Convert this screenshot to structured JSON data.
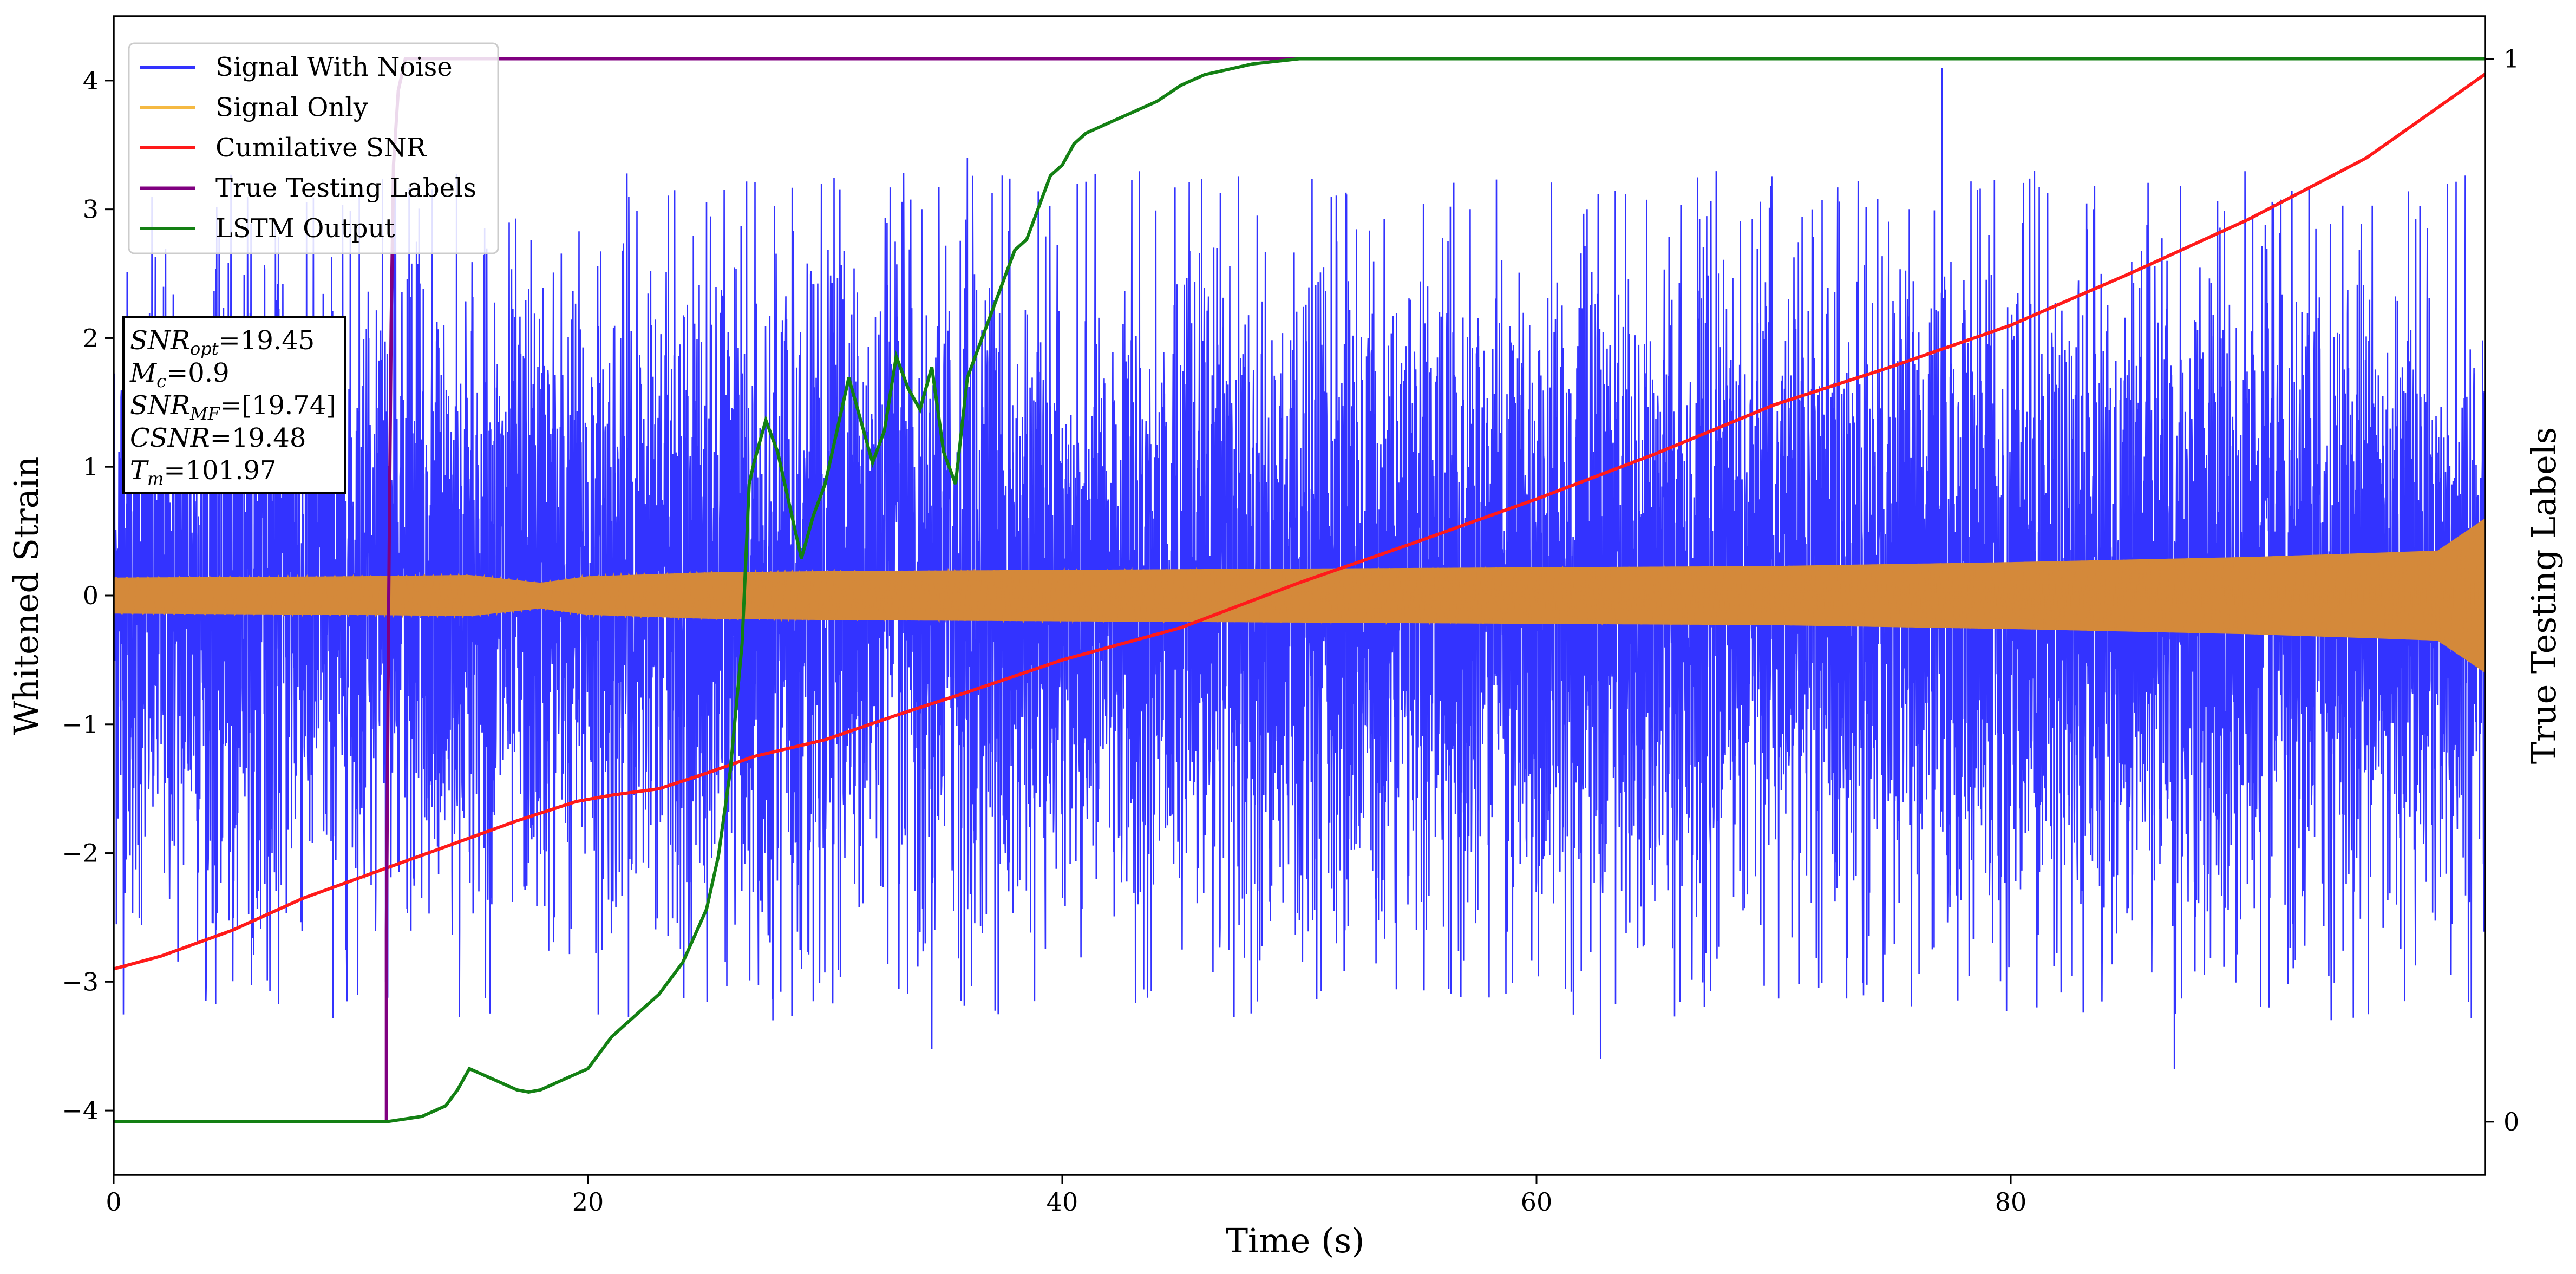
{
  "colors": {
    "signal_with_noise": "#3333ff",
    "signal_only": "#d4893a",
    "signal_only_legend": "#f5b942",
    "cumulative_snr": "#ff1a1a",
    "true_labels": "#800080",
    "lstm_output": "#138013"
  },
  "chart_data": {
    "type": "line",
    "xlabel": "Time (s)",
    "ylabel": "Whitened Strain",
    "ylabel_right": "True Testing Labels",
    "xlim": [
      0,
      100
    ],
    "ylim": [
      -4.5,
      4.5
    ],
    "ylim_right": [
      -0.05,
      1.04
    ],
    "xticks": [
      0,
      20,
      40,
      60,
      80
    ],
    "yticks": [
      -4,
      -3,
      -2,
      -1,
      0,
      1,
      2,
      3,
      4
    ],
    "yticks_right": [
      0,
      1
    ],
    "tick_labels": {
      "x": [
        "0",
        "20",
        "40",
        "60",
        "80"
      ],
      "y": [
        "−4",
        "−3",
        "−2",
        "−1",
        "0",
        "1",
        "2",
        "3",
        "4"
      ],
      "y_right": [
        "0",
        "1"
      ]
    },
    "legend_position": "upper-left",
    "grid": false,
    "legend": [
      {
        "label": "Signal With Noise",
        "color": "#3333ff"
      },
      {
        "label": "Signal Only",
        "color": "#f5b942"
      },
      {
        "label": "Cumilative SNR",
        "color": "#ff1a1a"
      },
      {
        "label": "True Testing Labels",
        "color": "#800080"
      },
      {
        "label": "LSTM Output",
        "color": "#138013"
      }
    ],
    "annotation": {
      "snr_opt": "=19.45",
      "mc": "=0.9",
      "snr_mf": "=[19.74]",
      "csnr": "=19.48",
      "tm": "=101.97"
    },
    "series": [
      {
        "name": "Cumilative SNR",
        "axis": "left",
        "x": [
          0,
          2,
          5,
          8,
          11,
          14,
          17,
          19.5,
          21,
          23,
          25,
          27,
          30,
          33,
          36,
          40,
          45,
          50,
          55,
          60,
          65,
          70,
          75,
          80,
          85,
          90,
          95,
          100
        ],
        "y": [
          -2.9,
          -2.8,
          -2.6,
          -2.35,
          -2.15,
          -1.95,
          -1.75,
          -1.6,
          -1.55,
          -1.5,
          -1.38,
          -1.25,
          -1.12,
          -0.93,
          -0.75,
          -0.5,
          -0.25,
          0.1,
          0.42,
          0.75,
          1.1,
          1.48,
          1.78,
          2.1,
          2.5,
          2.92,
          3.4,
          4.05
        ]
      },
      {
        "name": "True Testing Labels",
        "axis": "right",
        "x": [
          11.5,
          11.5,
          11.6,
          11.7,
          11.8,
          12.0,
          12.3,
          100
        ],
        "y": [
          0,
          0.18,
          0.5,
          0.75,
          0.9,
          0.97,
          1.0,
          1.0
        ]
      },
      {
        "name": "LSTM Output",
        "axis": "right",
        "x": [
          0,
          8,
          11.5,
          13,
          14,
          14.5,
          15,
          16,
          17,
          17.5,
          18,
          19,
          20,
          21,
          22,
          23,
          24,
          25,
          25.5,
          26,
          26.5,
          26.8,
          27,
          27.5,
          28,
          28.5,
          29,
          29.5,
          30,
          30.5,
          31,
          31.5,
          32,
          32.5,
          33,
          33.5,
          34,
          34.5,
          35,
          35.5,
          36,
          36.5,
          37,
          37.5,
          38,
          38.5,
          39,
          39.5,
          40,
          40.5,
          41,
          41.5,
          42,
          43,
          44,
          45,
          46,
          47,
          48,
          50,
          52,
          55,
          100
        ],
        "y": [
          0,
          0,
          0,
          0.005,
          0.015,
          0.03,
          0.05,
          0.04,
          0.03,
          0.028,
          0.03,
          0.04,
          0.05,
          0.08,
          0.1,
          0.12,
          0.15,
          0.2,
          0.25,
          0.33,
          0.45,
          0.6,
          0.62,
          0.66,
          0.63,
          0.58,
          0.53,
          0.57,
          0.6,
          0.65,
          0.7,
          0.66,
          0.62,
          0.65,
          0.72,
          0.69,
          0.67,
          0.71,
          0.63,
          0.6,
          0.7,
          0.73,
          0.76,
          0.79,
          0.82,
          0.83,
          0.86,
          0.89,
          0.9,
          0.92,
          0.93,
          0.935,
          0.94,
          0.95,
          0.96,
          0.975,
          0.985,
          0.99,
          0.995,
          1.0,
          1.0,
          1.0,
          1.0
        ]
      },
      {
        "name": "Signal Only",
        "axis": "left",
        "envelope_x": [
          0,
          10,
          15,
          18,
          20,
          25,
          30,
          40,
          50,
          60,
          70,
          80,
          90,
          95,
          98,
          100
        ],
        "envelope_amplitude": [
          0.14,
          0.15,
          0.16,
          0.1,
          0.15,
          0.18,
          0.19,
          0.2,
          0.21,
          0.22,
          0.23,
          0.26,
          0.3,
          0.33,
          0.35,
          0.6
        ]
      },
      {
        "name": "Signal With Noise",
        "axis": "left",
        "noise_band_x": [
          0,
          10,
          20,
          30,
          40,
          50,
          60,
          70,
          80,
          90,
          100
        ],
        "noise_band_amplitude": [
          2.0,
          2.0,
          2.0,
          2.1,
          2.1,
          2.1,
          2.1,
          2.1,
          2.1,
          2.2,
          2.2
        ],
        "peaks_x": [
          77.1,
          36.0,
          81.0,
          34.5,
          62.7,
          86.9
        ],
        "peaks_y": [
          4.1,
          3.4,
          3.3,
          -3.52,
          -3.6,
          -3.68
        ]
      }
    ]
  }
}
